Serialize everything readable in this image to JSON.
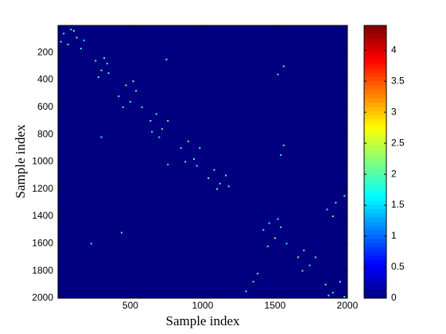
{
  "chart_data": {
    "type": "heatmap",
    "xlabel": "Sample index",
    "ylabel": "Sample index",
    "xlim": [
      0.5,
      2000.5
    ],
    "ylim": [
      0.5,
      2000.5
    ],
    "y_reversed": true,
    "xticks": [
      500,
      1000,
      1500,
      2000
    ],
    "yticks": [
      200,
      400,
      600,
      800,
      1000,
      1200,
      1400,
      1600,
      1800,
      2000
    ],
    "colormap": "jet",
    "clim": [
      0,
      4.4
    ],
    "fill_value": 0,
    "colorbar_ticks": [
      0,
      0.5,
      1,
      1.5,
      2,
      2.5,
      3,
      3.5,
      4
    ],
    "points": {
      "x": [
        40,
        90,
        130,
        70,
        160,
        20,
        110,
        180,
        260,
        300,
        340,
        280,
        320,
        350,
        420,
        470,
        500,
        540,
        580,
        450,
        520,
        640,
        680,
        720,
        760,
        700,
        650,
        850,
        900,
        940,
        980,
        880,
        960,
        1040,
        1080,
        1120,
        1160,
        1100,
        1180,
        1420,
        1460,
        1500,
        1540,
        1580,
        1450,
        1520,
        1660,
        1700,
        1740,
        1780,
        1690,
        1850,
        1900,
        1950,
        1980,
        1870,
        1860,
        1920,
        1980,
        1900,
        1350,
        1300,
        1380,
        1560,
        1540,
        1560,
        1520,
        760,
        750,
        300,
        440,
        230
      ],
      "y": [
        60,
        30,
        90,
        140,
        170,
        120,
        40,
        110,
        260,
        330,
        280,
        380,
        240,
        350,
        520,
        440,
        560,
        480,
        600,
        600,
        410,
        700,
        650,
        760,
        700,
        820,
        780,
        900,
        850,
        980,
        900,
        1000,
        1030,
        1120,
        1060,
        1160,
        1100,
        1200,
        1180,
        1500,
        1450,
        1560,
        1480,
        1600,
        1620,
        1420,
        1700,
        1650,
        1760,
        1700,
        1800,
        1900,
        1960,
        1880,
        1990,
        1980,
        1350,
        1300,
        1250,
        1400,
        1880,
        1950,
        1820,
        880,
        950,
        300,
        360,
        1020,
        250,
        820,
        1520,
        1600
      ],
      "values": [
        2,
        1.8,
        2.2,
        2,
        1.8,
        2,
        2.2,
        1.8,
        2,
        2.2,
        1.8,
        2,
        2,
        1.8,
        2,
        2.2,
        1.8,
        2,
        2,
        1.8,
        2.2,
        2,
        1.8,
        2.2,
        2,
        1.8,
        2,
        2,
        2.2,
        1.8,
        2,
        2,
        1.8,
        2.2,
        2,
        1.8,
        2,
        2.2,
        2,
        2,
        1.8,
        2.2,
        2,
        1.8,
        2,
        2,
        2.2,
        2,
        1.8,
        2,
        2,
        2,
        1.8,
        2.2,
        2,
        2,
        1.8,
        2,
        2,
        2.2,
        2,
        1.8,
        2,
        2,
        1.8,
        2,
        2,
        1.8,
        2,
        1.8,
        2,
        1.8
      ]
    }
  }
}
